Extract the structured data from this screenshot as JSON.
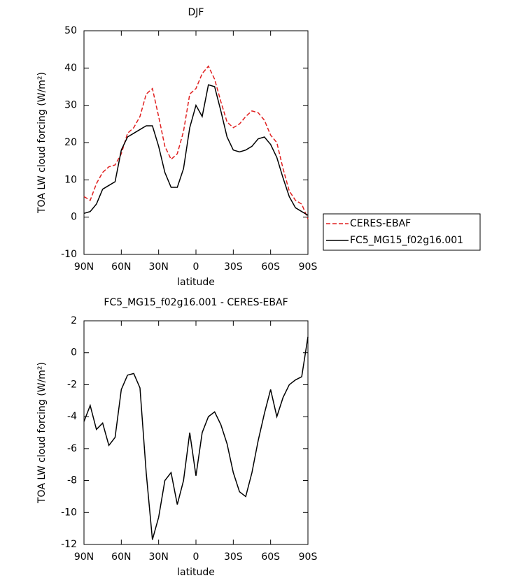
{
  "chart_data": [
    {
      "type": "line",
      "title": "DJF",
      "x_label": "latitude",
      "y_label": "TOA LW cloud forcing (W/m²)",
      "x": [
        90,
        85,
        80,
        75,
        70,
        65,
        60,
        55,
        50,
        45,
        40,
        35,
        30,
        25,
        20,
        15,
        10,
        5,
        0,
        -5,
        -10,
        -15,
        -20,
        -25,
        -30,
        -35,
        -40,
        -45,
        -50,
        -55,
        -60,
        -65,
        -70,
        -75,
        -80,
        -85,
        -90
      ],
      "series": [
        {
          "name": "CERES-EBAF",
          "color": "#e02020",
          "dashed": true,
          "values": [
            5.5,
            4.5,
            9,
            12,
            13.5,
            14,
            17,
            22.5,
            24,
            27,
            33,
            34.5,
            27,
            19,
            15.5,
            17,
            23,
            33,
            34.5,
            38.5,
            40.5,
            37,
            31,
            25.5,
            24,
            25,
            27,
            28.5,
            28,
            26,
            22,
            20,
            13,
            7,
            4.5,
            3.5,
            -0.5
          ]
        },
        {
          "name": "FC5_MG15_f02g16.001",
          "color": "#000000",
          "dashed": false,
          "values": [
            1,
            1.5,
            3.5,
            7.5,
            8.5,
            9.5,
            18,
            21.5,
            22.5,
            23.5,
            24.5,
            24.5,
            19,
            12,
            8,
            8,
            13,
            24,
            30,
            27,
            35.5,
            35,
            28.5,
            21.5,
            18,
            17.5,
            18,
            19,
            21,
            21.5,
            19.5,
            16,
            10.5,
            5.5,
            2.5,
            1.5,
            0.5
          ]
        }
      ],
      "xlim": [
        90,
        -90
      ],
      "xticks": [
        {
          "value": 90,
          "label": "90N"
        },
        {
          "value": 60,
          "label": "60N"
        },
        {
          "value": 30,
          "label": "30N"
        },
        0,
        {
          "value": -30,
          "label": "30S"
        },
        {
          "value": -60,
          "label": "60S"
        },
        {
          "value": -90,
          "label": "90S"
        }
      ],
      "ylim": [
        -10,
        50
      ],
      "yticks": [
        -10,
        0,
        10,
        20,
        30,
        40,
        50
      ],
      "legend": "right"
    },
    {
      "type": "line",
      "title": "FC5_MG15_f02g16.001 - CERES-EBAF",
      "x_label": "latitude",
      "y_label": "TOA LW cloud forcing (W/m²)",
      "x": [
        90,
        85,
        80,
        75,
        70,
        65,
        60,
        55,
        50,
        45,
        40,
        35,
        30,
        25,
        20,
        15,
        10,
        5,
        0,
        -5,
        -10,
        -15,
        -20,
        -25,
        -30,
        -35,
        -40,
        -45,
        -50,
        -55,
        -60,
        -65,
        -70,
        -75,
        -80,
        -85,
        -90
      ],
      "series": [
        {
          "color": "#000000",
          "dashed": false,
          "values": [
            -4.3,
            -3.3,
            -4.8,
            -4.4,
            -5.8,
            -5.3,
            -2.3,
            -1.4,
            -1.3,
            -2.2,
            -7.5,
            -11.7,
            -10.3,
            -8,
            -7.5,
            -9.5,
            -8,
            -5,
            -7.7,
            -5,
            -4,
            -3.7,
            -4.5,
            -5.7,
            -7.5,
            -8.7,
            -9,
            -7.5,
            -5.5,
            -3.8,
            -2.3,
            -4,
            -2.8,
            -2,
            -1.7,
            -1.5,
            1
          ]
        }
      ],
      "xlim": [
        90,
        -90
      ],
      "xticks": [
        {
          "value": 90,
          "label": "90N"
        },
        {
          "value": 60,
          "label": "60N"
        },
        {
          "value": 30,
          "label": "30N"
        },
        0,
        {
          "value": -30,
          "label": "30S"
        },
        {
          "value": -60,
          "label": "60S"
        },
        {
          "value": -90,
          "label": "90S"
        }
      ],
      "ylim": [
        -12,
        2
      ],
      "yticks": [
        -12,
        -10,
        -8,
        -6,
        -4,
        -2,
        0,
        2
      ]
    }
  ]
}
